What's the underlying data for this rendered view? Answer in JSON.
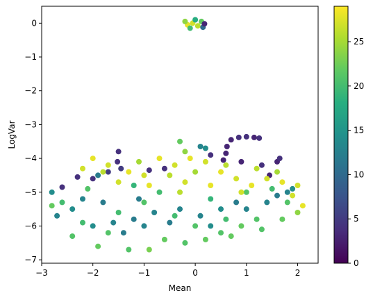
{
  "chart_data": {
    "type": "scatter",
    "xlabel": "Mean",
    "ylabel": "LogVar",
    "xlim": [
      -3,
      2.4
    ],
    "ylim": [
      -7.1,
      0.5
    ],
    "xticks": [
      -3,
      -2,
      -1,
      0,
      1,
      2
    ],
    "yticks": [
      0,
      -1,
      -2,
      -3,
      -4,
      -5,
      -6,
      -7
    ],
    "xtick_labels": [
      "−3",
      "−2",
      "−1",
      "0",
      "1",
      "2"
    ],
    "ytick_labels": [
      "0",
      "−1",
      "−2",
      "−3",
      "−4",
      "−5",
      "−6",
      "−7"
    ],
    "colormap": "viridis",
    "color_range": [
      0,
      29
    ],
    "colorbar_ticks": [
      0,
      5,
      10,
      15,
      20,
      25
    ],
    "colorbar_tick_labels": [
      "0",
      "5",
      "10",
      "15",
      "20",
      "25"
    ],
    "grid": false,
    "series": [
      {
        "points": [
          {
            "x": -0.15,
            "y": -0.05,
            "c": 28
          },
          {
            "x": -0.05,
            "y": 0.0,
            "c": 27
          },
          {
            "x": 0.05,
            "y": -0.08,
            "c": 26
          },
          {
            "x": 0.12,
            "y": 0.05,
            "c": 22
          },
          {
            "x": -0.1,
            "y": -0.15,
            "c": 20
          },
          {
            "x": 0.15,
            "y": -0.12,
            "c": 10
          },
          {
            "x": 0.18,
            "y": -0.02,
            "c": 3
          },
          {
            "x": -0.2,
            "y": 0.05,
            "c": 24
          },
          {
            "x": 0.0,
            "y": 0.1,
            "c": 18
          },
          {
            "x": 0.6,
            "y": -3.85,
            "c": 3
          },
          {
            "x": 0.7,
            "y": -3.45,
            "c": 3
          },
          {
            "x": 0.85,
            "y": -3.38,
            "c": 4
          },
          {
            "x": 1.0,
            "y": -3.36,
            "c": 4
          },
          {
            "x": 1.15,
            "y": -3.38,
            "c": 3
          },
          {
            "x": 1.25,
            "y": -3.4,
            "c": 4
          },
          {
            "x": 0.62,
            "y": -3.65,
            "c": 3
          },
          {
            "x": 0.9,
            "y": -4.1,
            "c": 3
          },
          {
            "x": 1.3,
            "y": -4.2,
            "c": 4
          },
          {
            "x": 1.6,
            "y": -4.1,
            "c": 3
          },
          {
            "x": 1.65,
            "y": -4.0,
            "c": 4
          },
          {
            "x": 1.45,
            "y": -4.5,
            "c": 3
          },
          {
            "x": 0.55,
            "y": -4.05,
            "c": 3
          },
          {
            "x": 0.3,
            "y": -3.9,
            "c": 4
          },
          {
            "x": -0.6,
            "y": -4.3,
            "c": 4
          },
          {
            "x": -1.5,
            "y": -3.8,
            "c": 4
          },
          {
            "x": -1.52,
            "y": -4.1,
            "c": 4
          },
          {
            "x": -1.45,
            "y": -4.3,
            "c": 5
          },
          {
            "x": -2.0,
            "y": -4.6,
            "c": 4
          },
          {
            "x": -2.3,
            "y": -4.55,
            "c": 4
          },
          {
            "x": -2.6,
            "y": -4.85,
            "c": 4
          },
          {
            "x": -1.7,
            "y": -4.4,
            "c": 5
          },
          {
            "x": -0.9,
            "y": -4.35,
            "c": 4
          },
          {
            "x": 0.1,
            "y": -3.65,
            "c": 13
          },
          {
            "x": 0.2,
            "y": -3.7,
            "c": 14
          },
          {
            "x": -1.9,
            "y": -4.5,
            "c": 12
          },
          {
            "x": -2.8,
            "y": -5.0,
            "c": 14
          },
          {
            "x": -1.2,
            "y": -5.8,
            "c": 12
          },
          {
            "x": -1.0,
            "y": -6.0,
            "c": 13
          },
          {
            "x": -1.6,
            "y": -5.9,
            "c": 13
          },
          {
            "x": -0.5,
            "y": -5.9,
            "c": 12
          },
          {
            "x": 0.1,
            "y": -5.7,
            "c": 13
          },
          {
            "x": 0.5,
            "y": -5.5,
            "c": 14
          },
          {
            "x": 1.0,
            "y": -5.5,
            "c": 13
          },
          {
            "x": 1.6,
            "y": -5.1,
            "c": 12
          },
          {
            "x": 1.8,
            "y": -5.0,
            "c": 13
          },
          {
            "x": 1.9,
            "y": -4.9,
            "c": 14
          },
          {
            "x": -2.2,
            "y": -5.2,
            "c": 13
          },
          {
            "x": -1.8,
            "y": -5.3,
            "c": 12
          },
          {
            "x": -2.4,
            "y": -5.5,
            "c": 14
          },
          {
            "x": -0.3,
            "y": -5.5,
            "c": 13
          },
          {
            "x": 0.8,
            "y": -5.3,
            "c": 12
          },
          {
            "x": 1.4,
            "y": -5.3,
            "c": 13
          },
          {
            "x": -1.4,
            "y": -6.2,
            "c": 12
          },
          {
            "x": -0.8,
            "y": -5.6,
            "c": 13
          },
          {
            "x": 0.3,
            "y": -6.0,
            "c": 14
          },
          {
            "x": -2.0,
            "y": -6.0,
            "c": 14
          },
          {
            "x": -2.7,
            "y": -5.7,
            "c": 13
          },
          {
            "x": -1.1,
            "y": -5.2,
            "c": 12
          },
          {
            "x": -2.2,
            "y": -5.9,
            "c": 20
          },
          {
            "x": -1.7,
            "y": -6.2,
            "c": 21
          },
          {
            "x": -1.9,
            "y": -6.6,
            "c": 22
          },
          {
            "x": -1.3,
            "y": -6.7,
            "c": 21
          },
          {
            "x": -0.9,
            "y": -6.7,
            "c": 23
          },
          {
            "x": -0.6,
            "y": -6.4,
            "c": 22
          },
          {
            "x": -0.2,
            "y": -6.5,
            "c": 21
          },
          {
            "x": 0.2,
            "y": -6.4,
            "c": 22
          },
          {
            "x": 0.5,
            "y": -6.2,
            "c": 21
          },
          {
            "x": 0.9,
            "y": -6.0,
            "c": 22
          },
          {
            "x": 1.2,
            "y": -5.8,
            "c": 21
          },
          {
            "x": 1.7,
            "y": -5.8,
            "c": 22
          },
          {
            "x": 2.0,
            "y": -5.6,
            "c": 24
          },
          {
            "x": -2.6,
            "y": -5.3,
            "c": 20
          },
          {
            "x": -2.4,
            "y": -6.3,
            "c": 21
          },
          {
            "x": -1.5,
            "y": -5.6,
            "c": 20
          },
          {
            "x": -1.0,
            "y": -5.3,
            "c": 21
          },
          {
            "x": -0.4,
            "y": -5.7,
            "c": 20
          },
          {
            "x": 0.0,
            "y": -6.0,
            "c": 21
          },
          {
            "x": 0.6,
            "y": -5.8,
            "c": 20
          },
          {
            "x": 1.0,
            "y": -5.0,
            "c": 21
          },
          {
            "x": 1.5,
            "y": -4.9,
            "c": 20
          },
          {
            "x": 1.8,
            "y": -5.3,
            "c": 21
          },
          {
            "x": -0.7,
            "y": -5.0,
            "c": 20
          },
          {
            "x": 0.3,
            "y": -5.2,
            "c": 19
          },
          {
            "x": -1.2,
            "y": -4.8,
            "c": 19
          },
          {
            "x": -2.8,
            "y": -5.4,
            "c": 22
          },
          {
            "x": -2.1,
            "y": -4.9,
            "c": 21
          },
          {
            "x": 0.7,
            "y": -6.3,
            "c": 22
          },
          {
            "x": 1.3,
            "y": -6.1,
            "c": 21
          },
          {
            "x": -0.3,
            "y": -3.5,
            "c": 22
          },
          {
            "x": -0.2,
            "y": -3.8,
            "c": 24
          },
          {
            "x": -2.0,
            "y": -4.0,
            "c": 28
          },
          {
            "x": -1.7,
            "y": -4.2,
            "c": 27
          },
          {
            "x": -1.3,
            "y": -4.4,
            "c": 28
          },
          {
            "x": -1.0,
            "y": -4.5,
            "c": 27
          },
          {
            "x": -0.7,
            "y": -4.0,
            "c": 28
          },
          {
            "x": -0.4,
            "y": -4.2,
            "c": 27
          },
          {
            "x": -0.1,
            "y": -4.0,
            "c": 28
          },
          {
            "x": 0.2,
            "y": -4.1,
            "c": 27
          },
          {
            "x": 0.5,
            "y": -4.4,
            "c": 28
          },
          {
            "x": 0.8,
            "y": -4.6,
            "c": 27
          },
          {
            "x": 1.1,
            "y": -4.8,
            "c": 28
          },
          {
            "x": 1.4,
            "y": -4.6,
            "c": 27
          },
          {
            "x": 1.7,
            "y": -4.7,
            "c": 28
          },
          {
            "x": 2.0,
            "y": -4.8,
            "c": 27
          },
          {
            "x": 2.1,
            "y": -5.4,
            "c": 28
          },
          {
            "x": 1.9,
            "y": -5.1,
            "c": 27
          },
          {
            "x": -1.5,
            "y": -4.7,
            "c": 27
          },
          {
            "x": -0.9,
            "y": -4.8,
            "c": 28
          },
          {
            "x": -0.2,
            "y": -4.7,
            "c": 27
          },
          {
            "x": 0.3,
            "y": -4.8,
            "c": 28
          },
          {
            "x": 0.9,
            "y": -5.0,
            "c": 27
          },
          {
            "x": -1.8,
            "y": -4.4,
            "c": 26
          },
          {
            "x": -0.5,
            "y": -4.5,
            "c": 26
          },
          {
            "x": 0.6,
            "y": -4.2,
            "c": 26
          },
          {
            "x": 1.2,
            "y": -4.3,
            "c": 26
          },
          {
            "x": -0.3,
            "y": -5.0,
            "c": 26
          },
          {
            "x": 0.0,
            "y": -4.4,
            "c": 25
          },
          {
            "x": -1.1,
            "y": -4.1,
            "c": 25
          },
          {
            "x": 1.6,
            "y": -4.4,
            "c": 25
          },
          {
            "x": -2.2,
            "y": -4.3,
            "c": 27
          }
        ]
      }
    ]
  },
  "colors": {
    "axis": "#000000",
    "background": "#ffffff"
  }
}
